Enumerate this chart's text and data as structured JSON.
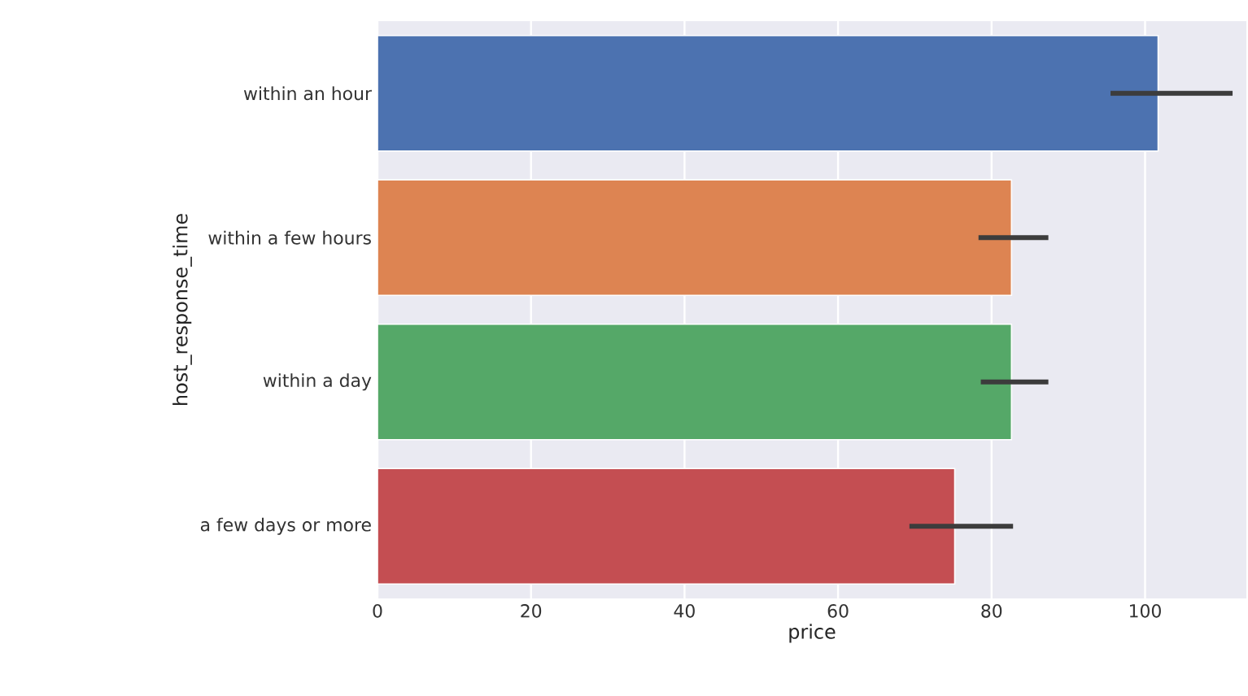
{
  "chart_data": {
    "type": "bar",
    "orientation": "horizontal",
    "xlabel": "price",
    "ylabel": "host_response_time",
    "categories": [
      "within an hour",
      "within a few hours",
      "within a day",
      "a few days or more"
    ],
    "values": [
      101.7,
      82.6,
      82.6,
      75.2
    ],
    "colors": [
      "#4c72b0",
      "#dd8452",
      "#55a868",
      "#c44e52"
    ],
    "errors": [
      [
        95.5,
        111.4
      ],
      [
        78.3,
        87.4
      ],
      [
        78.6,
        87.4
      ],
      [
        69.3,
        82.8
      ]
    ],
    "xlim": [
      0,
      113.2
    ],
    "xticks": [
      0,
      20,
      40,
      60,
      80,
      100
    ],
    "grid": "x"
  }
}
